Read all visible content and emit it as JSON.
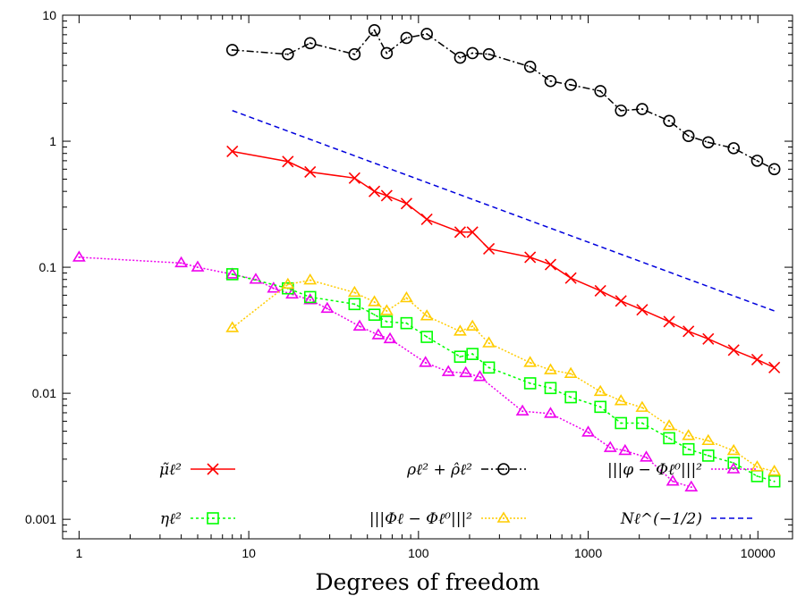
{
  "chart_data": {
    "type": "line",
    "xscale": "log",
    "yscale": "log",
    "xlim": [
      0.8,
      16000
    ],
    "ylim": [
      0.0007,
      10
    ],
    "xlabel": "Degrees of freedom",
    "ylabel": "",
    "grid": false,
    "xticks": [
      {
        "v": 1,
        "label": "1"
      },
      {
        "v": 10,
        "label": "10"
      },
      {
        "v": 100,
        "label": "100"
      },
      {
        "v": 1000,
        "label": "1000"
      },
      {
        "v": 10000,
        "label": "10000"
      }
    ],
    "yticks": [
      {
        "v": 0.001,
        "label": "0.001"
      },
      {
        "v": 0.01,
        "label": "0.01"
      },
      {
        "v": 0.1,
        "label": "0.1"
      },
      {
        "v": 1,
        "label": "1"
      },
      {
        "v": 10,
        "label": "10"
      }
    ],
    "legend_placement": "bottom",
    "series": [
      {
        "name": "μ̃ℓ²",
        "color": "#ff0000",
        "marker": "cross",
        "dash": "",
        "x": [
          8,
          17,
          23,
          42,
          55,
          65,
          85,
          112,
          176,
          208,
          260,
          455,
          600,
          790,
          1180,
          1560,
          2080,
          3000,
          3900,
          5100,
          7200,
          9900,
          12500
        ],
        "y": [
          0.83,
          0.69,
          0.57,
          0.51,
          0.4,
          0.37,
          0.32,
          0.24,
          0.19,
          0.19,
          0.14,
          0.12,
          0.105,
          0.082,
          0.065,
          0.054,
          0.046,
          0.037,
          0.031,
          0.027,
          0.022,
          0.0185,
          0.016
        ]
      },
      {
        "name": "ρℓ² + ρ̂ℓ²",
        "color": "#000000",
        "marker": "circle",
        "dash": "8,3,2,3",
        "x": [
          8,
          17,
          23,
          42,
          55,
          65,
          85,
          112,
          176,
          208,
          260,
          455,
          600,
          790,
          1180,
          1560,
          2080,
          3000,
          3900,
          5100,
          7200,
          9900,
          12500
        ],
        "y": [
          5.3,
          4.9,
          6.0,
          4.9,
          7.6,
          5.0,
          6.6,
          7.1,
          4.6,
          5.0,
          4.9,
          3.9,
          3.0,
          2.8,
          2.5,
          1.75,
          1.8,
          1.45,
          1.1,
          0.98,
          0.88,
          0.7,
          0.6
        ]
      },
      {
        "name": "|||φ − Φℓ⁰|||²",
        "color": "#ee00ee",
        "marker": "triangle",
        "dash": "2,2",
        "x": [
          1,
          4,
          5,
          8,
          11,
          14,
          18,
          23,
          29,
          45,
          58,
          68,
          110,
          150,
          190,
          230,
          410,
          600,
          1000,
          1350,
          1650,
          2200,
          3150,
          4050
        ],
        "y": [
          0.12,
          0.108,
          0.1,
          0.088,
          0.08,
          0.068,
          0.061,
          0.055,
          0.047,
          0.034,
          0.029,
          0.027,
          0.0175,
          0.0148,
          0.0145,
          0.0135,
          0.0072,
          0.0069,
          0.0049,
          0.0037,
          0.0035,
          0.0031,
          0.002,
          0.0018
        ]
      },
      {
        "name": "ηℓ²",
        "color": "#00ff00",
        "marker": "square",
        "dash": "3,3",
        "x": [
          8,
          17,
          23,
          42,
          55,
          65,
          85,
          112,
          176,
          208,
          260,
          455,
          600,
          790,
          1180,
          1560,
          2080,
          3000,
          3900,
          5100,
          7200,
          9900,
          12500
        ],
        "y": [
          0.088,
          0.068,
          0.058,
          0.051,
          0.042,
          0.037,
          0.036,
          0.028,
          0.0195,
          0.0205,
          0.016,
          0.012,
          0.011,
          0.0093,
          0.0078,
          0.0058,
          0.0058,
          0.0044,
          0.0036,
          0.0032,
          0.0028,
          0.0022,
          0.002
        ]
      },
      {
        "name": "|||Φℓ − Φℓ⁰|||²",
        "color": "#ffcc00",
        "marker": "triangle",
        "dash": "2,2",
        "x": [
          8,
          17,
          23,
          42,
          55,
          65,
          85,
          112,
          176,
          208,
          260,
          455,
          600,
          790,
          1180,
          1560,
          2080,
          3000,
          3900,
          5100,
          7200,
          9900,
          12500
        ],
        "y": [
          0.033,
          0.073,
          0.079,
          0.063,
          0.053,
          0.045,
          0.057,
          0.041,
          0.031,
          0.034,
          0.025,
          0.0175,
          0.0153,
          0.0143,
          0.0103,
          0.0087,
          0.0077,
          0.0055,
          0.0046,
          0.0042,
          0.0035,
          0.0026,
          0.0024
        ]
      },
      {
        "name": "Nℓ^(−1/2)",
        "color": "#0000dd",
        "marker": "none",
        "dash": "6,4",
        "x": [
          8,
          12500
        ],
        "y": [
          1.75,
          0.045
        ]
      }
    ],
    "legend": [
      {
        "series": 0,
        "label": "μ̃ℓ²"
      },
      {
        "series": 1,
        "label": "ρℓ² + ρ̂ℓ²"
      },
      {
        "series": 2,
        "label": "|||φ − Φℓ⁰|||²"
      },
      {
        "series": 3,
        "label": "ηℓ²"
      },
      {
        "series": 4,
        "label": "|||Φℓ − Φℓ⁰|||²"
      },
      {
        "series": 5,
        "label": "Nℓ^(−1/2)"
      }
    ]
  }
}
